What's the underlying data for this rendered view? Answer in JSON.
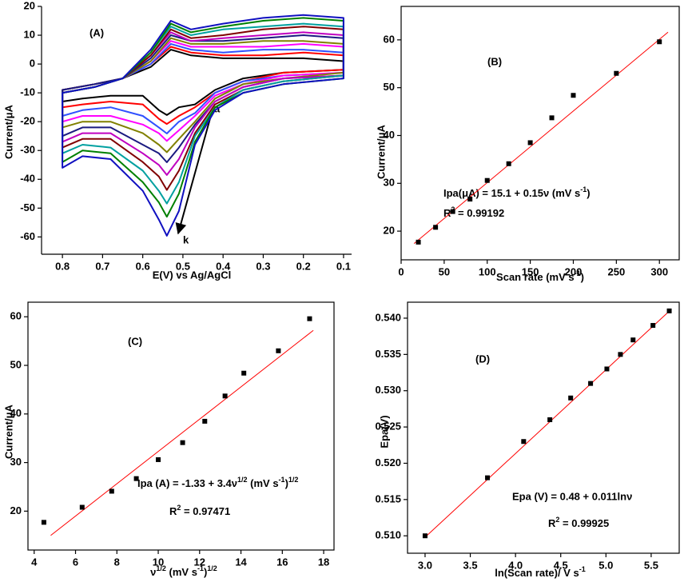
{
  "chart_data": [
    {
      "type": "line",
      "xlabel": "E(V) vs Ag/AgCl",
      "ylabel": "Current/μA",
      "annotations": [
        "(A)",
        "a",
        "k"
      ],
      "xlim": [
        0.852,
        0.08
      ],
      "xticks": [
        0.8,
        0.7,
        0.6,
        0.5,
        0.4,
        0.3,
        0.2,
        0.1
      ],
      "ylim": [
        -66,
        20
      ],
      "yticks": [
        -60,
        -50,
        -40,
        -30,
        -20,
        -10,
        0,
        10,
        20
      ],
      "x": [
        0.1,
        0.2,
        0.3,
        0.4,
        0.48,
        0.53,
        0.58,
        0.65,
        0.72,
        0.8,
        0.8,
        0.75,
        0.68,
        0.6,
        0.56,
        0.54,
        0.51,
        0.47,
        0.42,
        0.35,
        0.25,
        0.1
      ],
      "series": [
        {
          "color": "#000000",
          "values": [
            1,
            2,
            2,
            2,
            3,
            5,
            -1,
            -5,
            -7,
            -9,
            -13,
            -12,
            -11,
            -11,
            -16,
            -17.7,
            -15,
            -14,
            -9,
            -5,
            -3,
            -2
          ]
        },
        {
          "color": "#ff0000",
          "values": [
            3,
            4,
            3,
            3,
            4,
            6,
            0,
            -5,
            -7,
            -9,
            -15,
            -14,
            -13,
            -14,
            -19,
            -20.8,
            -18,
            -15,
            -10,
            -6,
            -3,
            -2
          ]
        },
        {
          "color": "#3050ff",
          "values": [
            4,
            5,
            5,
            4,
            5,
            7,
            0,
            -5,
            -7,
            -9,
            -18,
            -16,
            -15,
            -18,
            -22,
            -24.1,
            -20,
            -17,
            -10,
            -6,
            -4,
            -3
          ]
        },
        {
          "color": "#ff00ff",
          "values": [
            6,
            7,
            6,
            6,
            6,
            8,
            1,
            -5,
            -7,
            -9,
            -20,
            -18,
            -18,
            -21,
            -24,
            -26.7,
            -23,
            -18,
            -11,
            -7,
            -4,
            -3
          ]
        },
        {
          "color": "#808000",
          "values": [
            7,
            8,
            8,
            7,
            7,
            9,
            1,
            -5,
            -7,
            -9,
            -22,
            -20,
            -20,
            -24,
            -28,
            -30.6,
            -26,
            -20,
            -12,
            -7,
            -5,
            -3
          ]
        },
        {
          "color": "#1a1a80",
          "values": [
            9,
            10,
            9,
            8,
            8,
            10,
            2,
            -5,
            -7,
            -9,
            -25,
            -22,
            -22,
            -28,
            -31,
            -34.1,
            -29,
            -21,
            -13,
            -8,
            -5,
            -4
          ]
        },
        {
          "color": "#c000c0",
          "values": [
            10,
            11,
            10,
            9,
            8,
            11,
            3,
            -5,
            -8,
            -10,
            -27,
            -24,
            -24,
            -31,
            -35,
            -38.5,
            -33,
            -22,
            -13,
            -8,
            -5,
            -4
          ]
        },
        {
          "color": "#800000",
          "values": [
            12,
            13,
            12,
            10,
            9,
            12,
            3,
            -5,
            -8,
            -10,
            -29,
            -26,
            -26,
            -34,
            -39,
            -43.7,
            -37,
            -24,
            -14,
            -9,
            -6,
            -4
          ]
        },
        {
          "color": "#00a0a0",
          "values": [
            13,
            14,
            13,
            12,
            10,
            13,
            4,
            -5,
            -8,
            -10,
            -31,
            -28,
            -29,
            -37,
            -44,
            -48.4,
            -41,
            -25,
            -15,
            -9,
            -6,
            -4
          ]
        },
        {
          "color": "#008000",
          "values": [
            15,
            16,
            15,
            13,
            11,
            14,
            4,
            -5,
            -8,
            -10,
            -34,
            -30,
            -31,
            -41,
            -48,
            -53,
            -45,
            -27,
            -15,
            -10,
            -7,
            -5
          ]
        },
        {
          "color": "#1010c0",
          "values": [
            16,
            17,
            16,
            14,
            12,
            15,
            5,
            -5,
            -8,
            -10,
            -36,
            -32,
            -33,
            -44,
            -54,
            -59.6,
            -51,
            -28,
            -16,
            -10,
            -7,
            -5
          ]
        }
      ]
    },
    {
      "type": "scatter",
      "xlabel": [
        "Scan rate (mV s",
        "-1",
        ")"
      ],
      "ylabel": "Current/μA",
      "annotations": [
        "(B)",
        [
          "Ipa(μA) = 15.1 + 0.15ν (mV s",
          "-1",
          ")"
        ],
        [
          "R",
          "2",
          " = 0.99192"
        ]
      ],
      "xlim": [
        0,
        323
      ],
      "xticks": [
        0,
        50,
        100,
        150,
        200,
        250,
        300
      ],
      "ylim": [
        14,
        67
      ],
      "yticks": [
        20,
        30,
        40,
        50,
        60
      ],
      "x": [
        20,
        40,
        60,
        80,
        100,
        125,
        150,
        175,
        200,
        250,
        300
      ],
      "values": [
        17.7,
        20.8,
        24.1,
        26.7,
        30.6,
        34.1,
        38.5,
        43.7,
        48.4,
        53,
        59.6
      ],
      "color": "#000000",
      "fit": {
        "x": [
          15,
          310
        ],
        "values": [
          17.4,
          61.6
        ],
        "color": "#ff0000"
      }
    },
    {
      "type": "scatter",
      "xlabel": [
        "ν",
        "1/2",
        " (mV s",
        "-1",
        ")",
        "1/2"
      ],
      "ylabel": "Current/μA",
      "annotations": [
        "(C)",
        [
          "Ipa (A) = -1.33 + 3.4ν",
          "1/2",
          " (mV s",
          "-1",
          ")",
          "1/2"
        ],
        [
          "R",
          "2",
          " = 0.97471"
        ]
      ],
      "xlim": [
        3.7,
        18.5
      ],
      "xticks": [
        4,
        6,
        8,
        10,
        12,
        14,
        16,
        18
      ],
      "ylim": [
        12,
        63
      ],
      "yticks": [
        20,
        30,
        40,
        50,
        60
      ],
      "x": [
        4.47,
        6.32,
        7.75,
        8.94,
        10,
        11.18,
        12.25,
        13.23,
        14.14,
        15.81,
        17.32
      ],
      "values": [
        17.7,
        20.8,
        24.1,
        26.7,
        30.6,
        34.1,
        38.5,
        43.7,
        48.4,
        53,
        59.6
      ],
      "color": "#000000",
      "fit": {
        "x": [
          4.8,
          17.5
        ],
        "values": [
          15,
          57.2
        ],
        "color": "#ff0000"
      }
    },
    {
      "type": "scatter",
      "xlabel": [
        "ln(Scan rate)/ V s",
        "-1"
      ],
      "ylabel": "Epa(V)",
      "annotations": [
        "(D)",
        "Epa (V) = 0.48 + 0.011lnν",
        [
          "R",
          "2",
          " = 0.99925"
        ]
      ],
      "xlim": [
        2.806,
        5.81
      ],
      "xticks": [
        {
          "value": 3,
          "label": "3.0"
        },
        3.5,
        {
          "value": 4,
          "label": "4.0"
        },
        4.5,
        {
          "value": 5,
          "label": "5.0"
        },
        5.5
      ],
      "ylim": [
        0.5076,
        0.5422
      ],
      "yticks": [
        {
          "value": 0.51,
          "label": "0.510"
        },
        0.515,
        {
          "value": 0.52,
          "label": "0.520"
        },
        0.525,
        {
          "value": 0.53,
          "label": "0.530"
        },
        0.535,
        {
          "value": 0.54,
          "label": "0.540"
        }
      ],
      "x": [
        3.0,
        3.69,
        4.09,
        4.38,
        4.61,
        4.83,
        5.01,
        5.16,
        5.3,
        5.52,
        5.7
      ],
      "values": [
        0.51,
        0.518,
        0.523,
        0.526,
        0.529,
        0.531,
        0.533,
        0.535,
        0.537,
        0.539,
        0.541
      ],
      "color": "#000000",
      "fit": {
        "x": [
          3.0,
          5.72
        ],
        "values": [
          0.5098,
          0.5412
        ],
        "color": "#ff0000"
      }
    }
  ]
}
